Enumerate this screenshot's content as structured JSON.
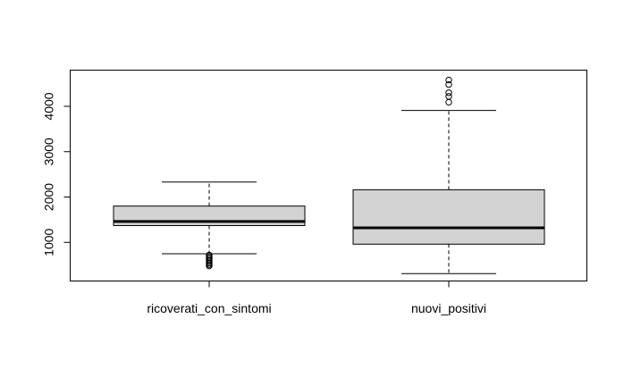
{
  "chart_data": {
    "type": "boxplot",
    "title": "",
    "xlabel": "",
    "ylabel": "",
    "ylim": [
      0,
      4750
    ],
    "yticks": [
      1000,
      2000,
      3000,
      4000
    ],
    "ytick_labels": [
      "1000",
      "2000",
      "3000",
      "4000"
    ],
    "grid": false,
    "legend": "none",
    "box_fill": "#d3d3d3",
    "categories": [
      "ricoverati_con_sintomi",
      "nuovi_positivi"
    ],
    "boxes": [
      {
        "label": "ricoverati_con_sintomi",
        "whisker_low": 750,
        "q1": 1370,
        "median": 1460,
        "q3": 1800,
        "whisker_high": 2330,
        "outliers": [
          720,
          690,
          660,
          630,
          600,
          570,
          540,
          510,
          480
        ]
      },
      {
        "label": "nuovi_positivi",
        "whisker_low": 310,
        "q1": 960,
        "median": 1320,
        "q3": 2160,
        "whisker_high": 3910,
        "outliers": [
          4090,
          4220,
          4300,
          4480,
          4580
        ]
      }
    ]
  }
}
